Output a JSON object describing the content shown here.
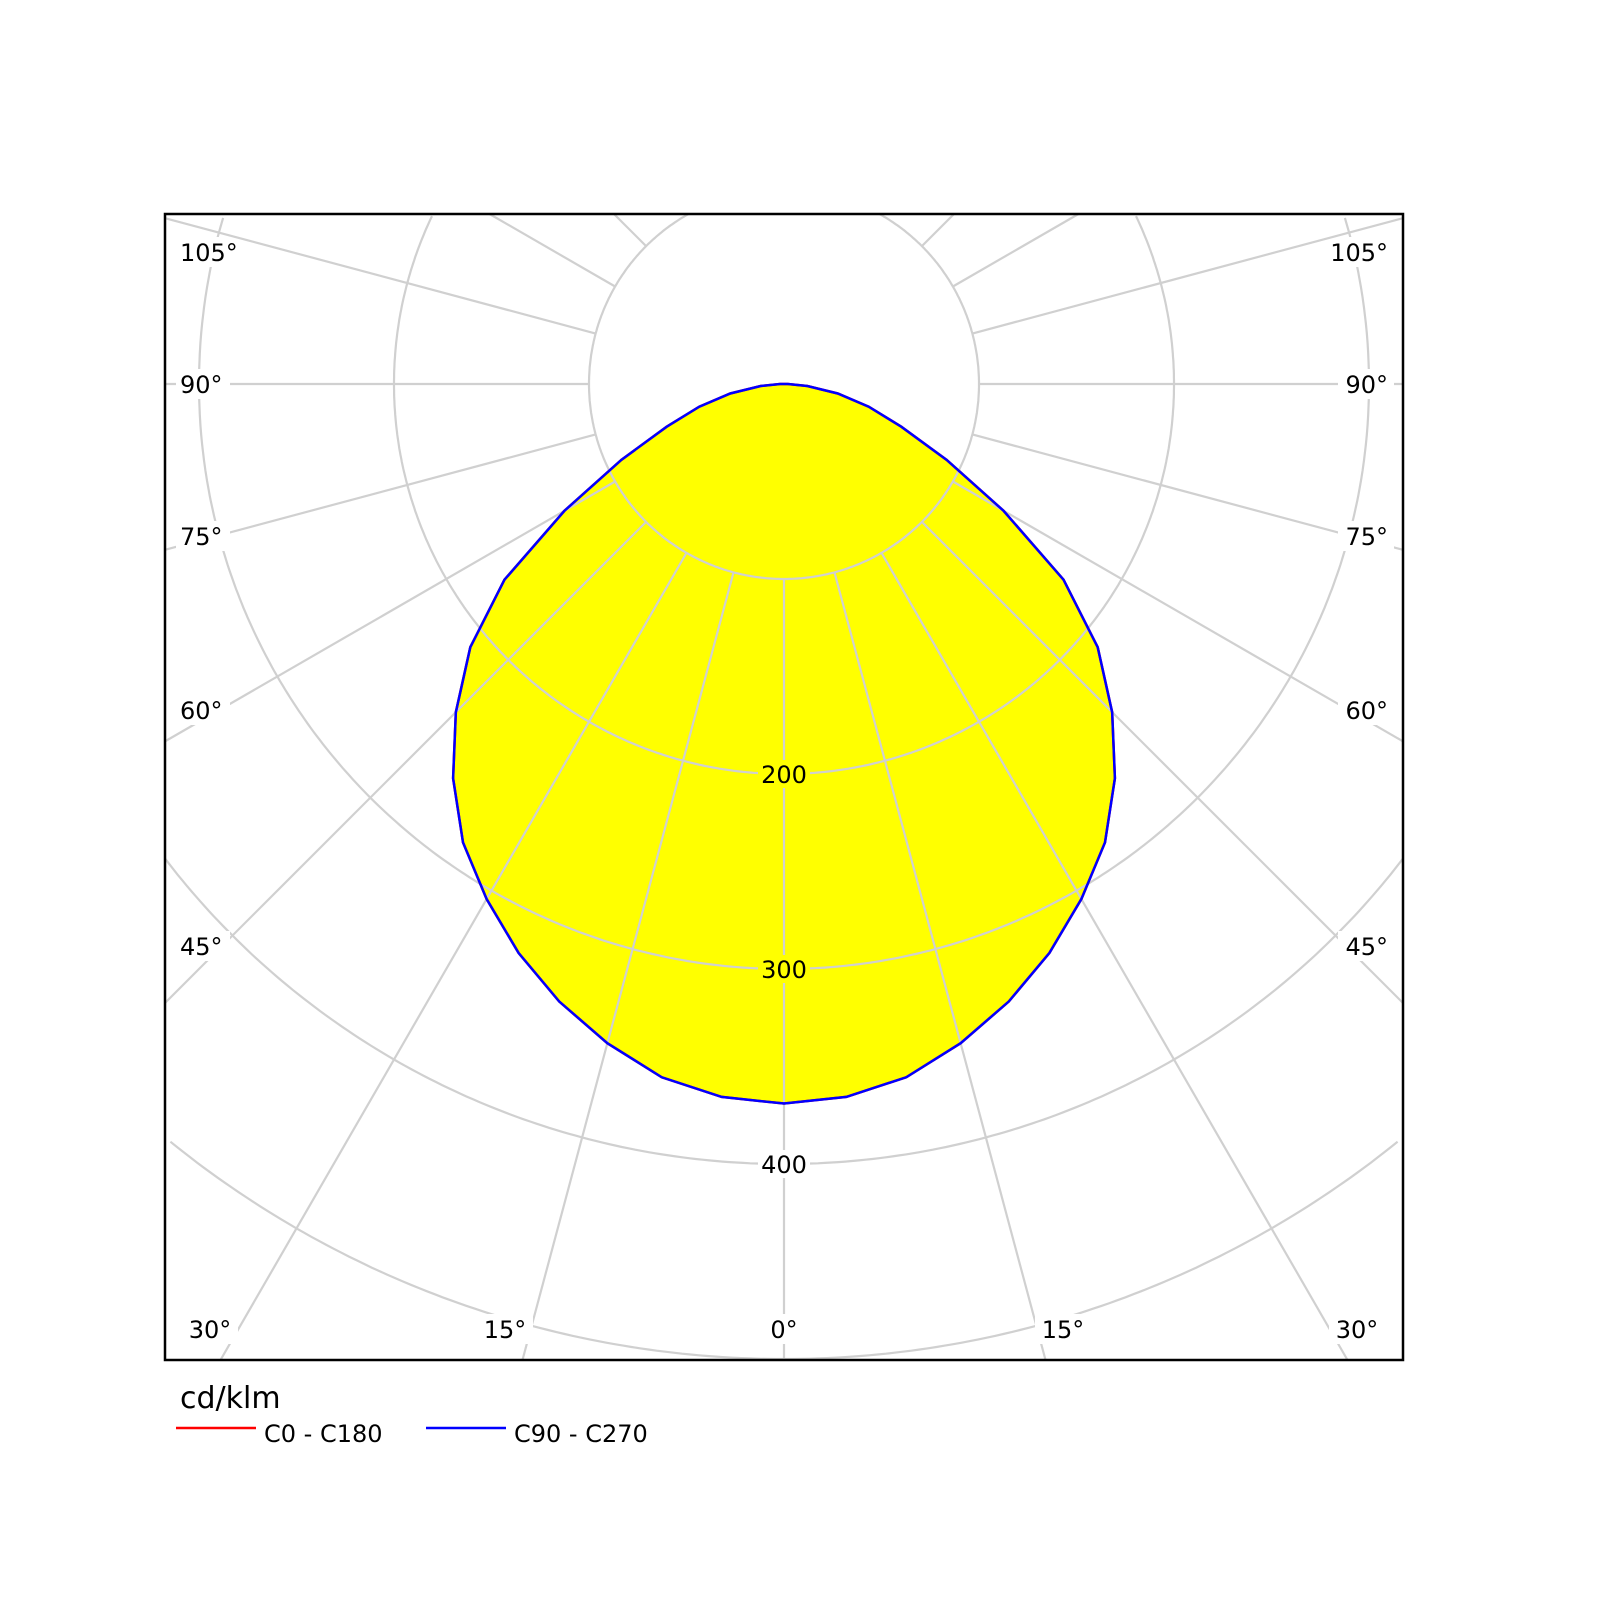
{
  "chart_data": {
    "type": "polar",
    "unit_label": "cd/klm",
    "radial_ticks": [
      100,
      200,
      300,
      400,
      500,
      600
    ],
    "radial_tick_labels_shown": [
      "200",
      "300",
      "400"
    ],
    "angle_labels": {
      "left": [
        "105°",
        "90°",
        "75°",
        "60°",
        "45°"
      ],
      "right": [
        "105°",
        "90°",
        "75°",
        "60°",
        "45°"
      ],
      "bottom": [
        "30°",
        "15°",
        "0°",
        "15°",
        "30°"
      ]
    },
    "grid": true,
    "fill_color": "#ffff00",
    "grid_color": "#d0d0d0",
    "legend_position": "bottom-left",
    "series": [
      {
        "name": "C0 - C180",
        "color": "#ff0000",
        "angles": [
          0,
          5,
          10,
          15,
          20,
          25,
          30,
          35,
          40,
          45,
          50,
          55,
          60,
          65,
          70,
          75,
          80,
          85,
          90
        ],
        "values": [
          369,
          367,
          361,
          350,
          337,
          322,
          305,
          287,
          264,
          238,
          210,
          175,
          130,
          92,
          64,
          45,
          28,
          12,
          2
        ]
      },
      {
        "name": "C90 - C270",
        "color": "#0000ff",
        "angles": [
          0,
          5,
          10,
          15,
          20,
          25,
          30,
          35,
          40,
          45,
          50,
          55,
          60,
          65,
          70,
          75,
          80,
          85,
          90
        ],
        "values": [
          369,
          367,
          361,
          350,
          337,
          322,
          305,
          287,
          264,
          238,
          210,
          175,
          130,
          92,
          64,
          45,
          28,
          12,
          2
        ]
      }
    ]
  }
}
